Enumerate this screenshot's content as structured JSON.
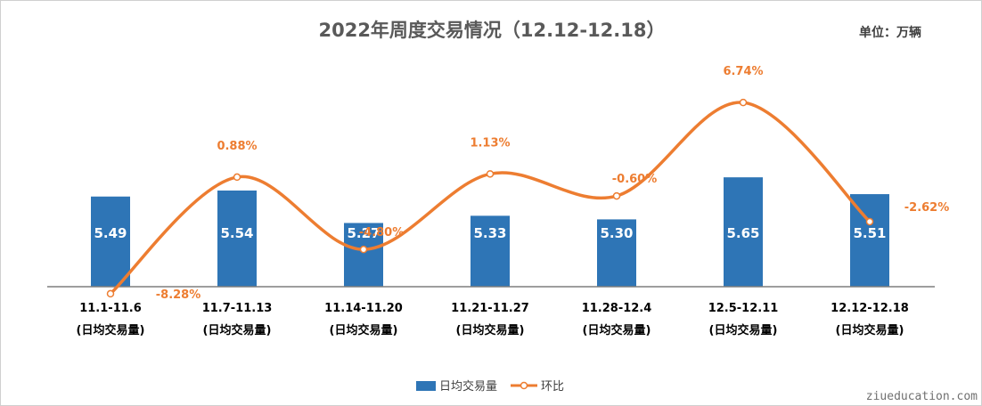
{
  "chart_data": {
    "type": "bar",
    "title": "2022年周度交易情况（12.12-12.18）",
    "unit": "单位：万辆",
    "categories": [
      "11.1-11.6",
      "11.7-11.13",
      "11.14-11.20",
      "11.21-11.27",
      "11.28-12.4",
      "12.5-12.11",
      "12.12-12.18"
    ],
    "category_suffix": "(日均交易量)",
    "series": [
      {
        "name": "日均交易量",
        "kind": "bar",
        "color": "#2E75B6",
        "values": [
          5.49,
          5.54,
          5.27,
          5.33,
          5.3,
          5.65,
          5.51
        ],
        "labels": [
          "5.49",
          "5.54",
          "5.27",
          "5.33",
          "5.30",
          "5.65",
          "5.51"
        ]
      },
      {
        "name": "环比",
        "kind": "line",
        "color": "#ED7D31",
        "values": [
          -8.28,
          0.88,
          -4.8,
          1.13,
          -0.6,
          6.74,
          -2.62
        ],
        "labels": [
          "-8.28%",
          "0.88%",
          "-4.80%",
          "1.13%",
          "-0.60%",
          "6.74%",
          "-2.62%"
        ]
      }
    ],
    "legend_position": "bottom",
    "grid": false
  },
  "watermark": "ziueducation.com"
}
